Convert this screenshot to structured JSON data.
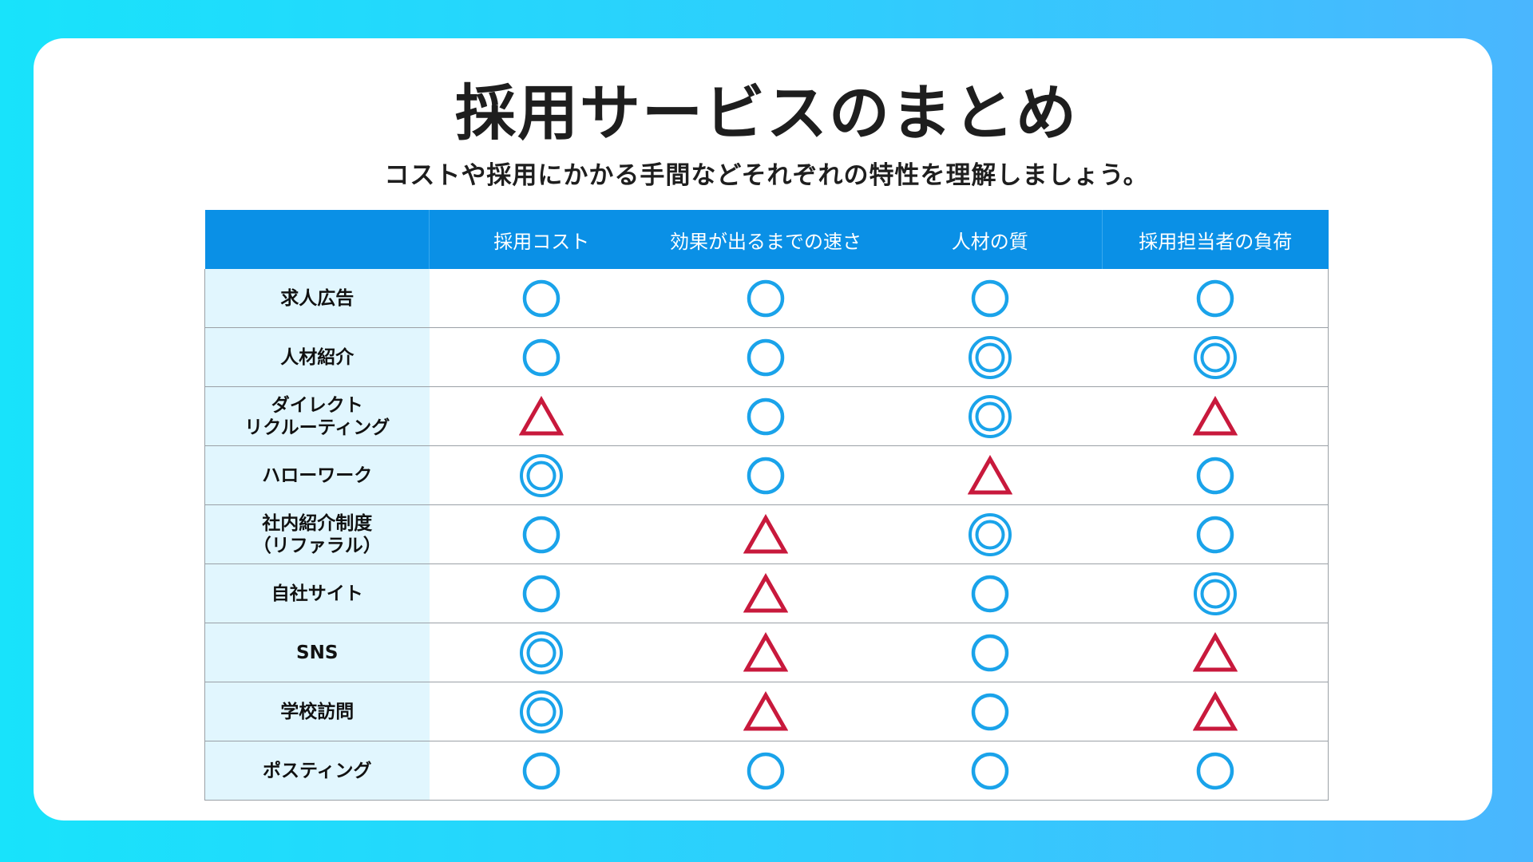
{
  "title": "採用サービスのまとめ",
  "subtitle": "コストや採用にかかる手間などそれぞれの特性を理解しましょう。",
  "colors": {
    "header_bg": "#0a90e6",
    "rowhead_bg": "#e1f6fe",
    "circle": "#1aa3ea",
    "triangle": "#c8193c"
  },
  "table": {
    "columns": [
      "",
      "採用コスト",
      "効果が出るまでの速さ",
      "人材の質",
      "採用担当者の負荷"
    ],
    "rows": [
      {
        "label": "求人広告",
        "marks": [
          "circle",
          "circle",
          "circle",
          "circle"
        ]
      },
      {
        "label": "人材紹介",
        "marks": [
          "circle",
          "circle",
          "double-circle",
          "double-circle"
        ]
      },
      {
        "label": "ダイレクト\nリクルーティング",
        "marks": [
          "triangle",
          "circle",
          "double-circle",
          "triangle"
        ]
      },
      {
        "label": "ハローワーク",
        "marks": [
          "double-circle",
          "circle",
          "triangle",
          "circle"
        ]
      },
      {
        "label": "社内紹介制度\n（リファラル）",
        "marks": [
          "circle",
          "triangle",
          "double-circle",
          "circle"
        ]
      },
      {
        "label": "自社サイト",
        "marks": [
          "circle",
          "triangle",
          "circle",
          "double-circle"
        ]
      },
      {
        "label": "SNS",
        "marks": [
          "double-circle",
          "triangle",
          "circle",
          "triangle"
        ]
      },
      {
        "label": "学校訪問",
        "marks": [
          "double-circle",
          "triangle",
          "circle",
          "triangle"
        ]
      },
      {
        "label": "ポスティング",
        "marks": [
          "circle",
          "circle",
          "circle",
          "circle"
        ]
      }
    ]
  }
}
